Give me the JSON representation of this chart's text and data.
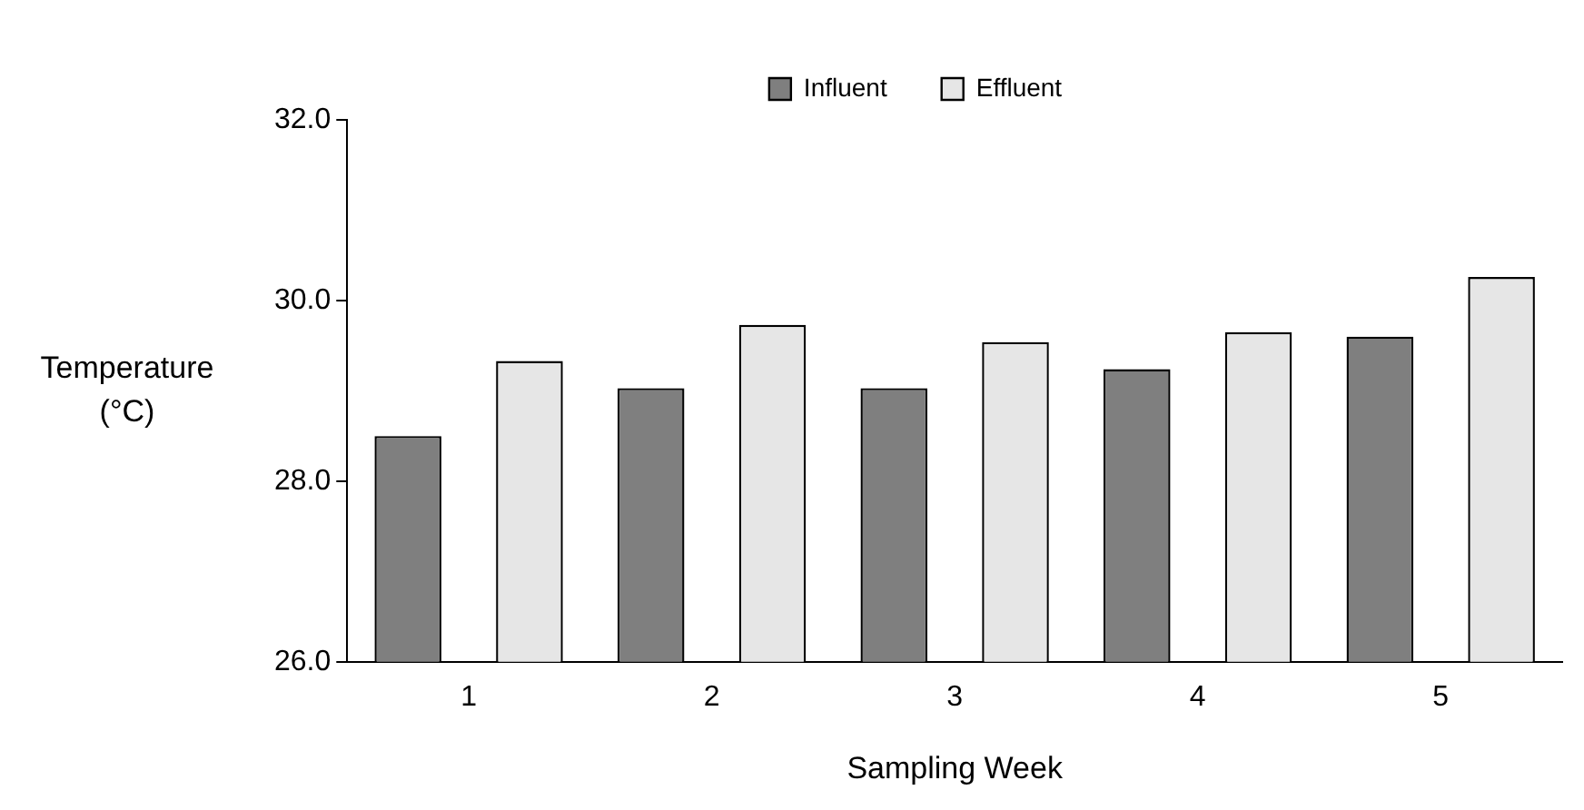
{
  "chart_data": {
    "type": "bar",
    "xlabel": "Sampling Week",
    "ylabel": "Temperature (°C)",
    "categories": [
      "1",
      "2",
      "3",
      "4",
      "5"
    ],
    "series": [
      {
        "name": "Influent",
        "color": "#7f7f7f",
        "values": [
          28.5,
          29.03,
          29.03,
          29.24,
          29.6
        ]
      },
      {
        "name": "Effluent",
        "color": "#e6e6e6",
        "values": [
          29.33,
          29.73,
          29.54,
          29.65,
          30.26
        ]
      }
    ],
    "ylim": [
      26,
      32
    ],
    "yticks": [
      {
        "value": 26,
        "label": "26.0"
      },
      {
        "value": 28,
        "label": "28.0"
      },
      {
        "value": 30,
        "label": "30.0"
      },
      {
        "value": 32,
        "label": "32.0"
      }
    ],
    "grid": false,
    "legend": "top"
  }
}
